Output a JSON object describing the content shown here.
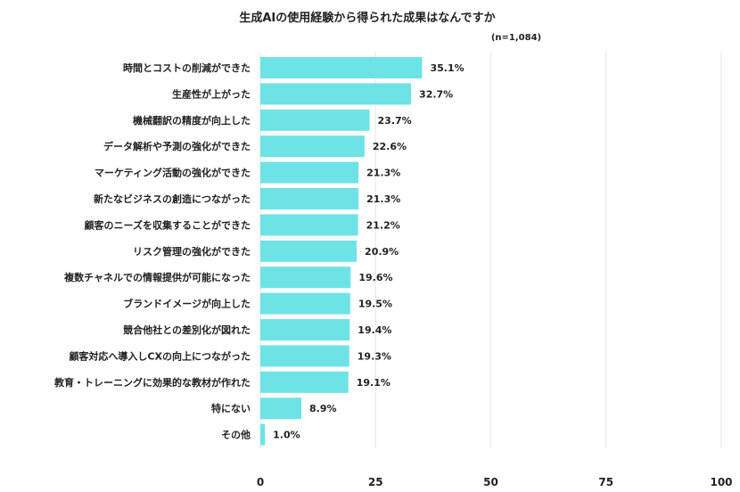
{
  "chart_data": {
    "type": "bar",
    "orientation": "horizontal",
    "title": "生成AIの使用経験から得られた成果はなんですか",
    "note": "(n=1,084)",
    "categories": [
      "時間とコストの削減ができた",
      "生産性が上がった",
      "機械翻訳の精度が向上した",
      "データ解析や予測の強化ができた",
      "マーケティング活動の強化ができた",
      "新たなビジネスの創造につながった",
      "顧客のニーズを収集することができた",
      "リスク管理の強化ができた",
      "複数チャネルでの情報提供が可能になった",
      "ブランドイメージが向上した",
      "競合他社との差別化が図れた",
      "顧客対応へ導入しCXの向上につながった",
      "教育・トレーニングに効果的な教材が作れた",
      "特にない",
      "その他"
    ],
    "values": [
      35.1,
      32.7,
      23.7,
      22.6,
      21.3,
      21.3,
      21.2,
      20.9,
      19.6,
      19.5,
      19.4,
      19.3,
      19.1,
      8.9,
      1.0
    ],
    "value_labels": [
      "35.1%",
      "32.7%",
      "23.7%",
      "22.6%",
      "21.3%",
      "21.3%",
      "21.2%",
      "20.9%",
      "19.6%",
      "19.5%",
      "19.4%",
      "19.3%",
      "19.1%",
      "8.9%",
      "1.0%"
    ],
    "xlim": [
      0,
      100
    ],
    "xticks": [
      0,
      25,
      50,
      75,
      100
    ],
    "xtick_labels": [
      "0",
      "25",
      "50",
      "75",
      "100"
    ],
    "xlabel": "",
    "ylabel": "",
    "grid": true,
    "legend": "none",
    "bar_color": "#6ee3e6",
    "grid_color": "#e6e6e6"
  }
}
